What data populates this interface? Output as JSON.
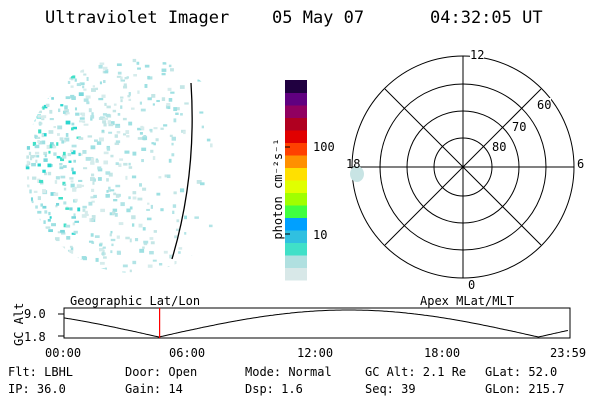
{
  "header": {
    "instrument": "Ultraviolet Imager",
    "date": "05 May 07",
    "time": "04:32:05 UT"
  },
  "colorbar": {
    "unit_label": "photon cm⁻²s⁻¹",
    "ticks": [
      "100",
      "10"
    ],
    "colors": [
      "#d8e8e8",
      "#b0e0e0",
      "#40e0c8",
      "#30c0e0",
      "#00a0ff",
      "#40ff40",
      "#a0ff00",
      "#e0ff00",
      "#ffe000",
      "#ff9000",
      "#ff4000",
      "#e00000",
      "#b00020",
      "#900060",
      "#600080",
      "#200040"
    ]
  },
  "polar_plot": {
    "mlt_labels": {
      "top": "12",
      "left": "18",
      "right": "6",
      "bottom": "0"
    },
    "lat_labels": [
      "60",
      "70",
      "80"
    ]
  },
  "panel_labels": {
    "left": "Geographic Lat/Lon",
    "right": "Apex MLat/MLT"
  },
  "altitude_plot": {
    "ylabel": "GC Alt",
    "y_ticks": [
      "9.0",
      "1.8"
    ],
    "x_ticks": [
      "00:00",
      "06:00",
      "12:00",
      "18:00",
      "23:59"
    ],
    "current_time_hours": 4.535
  },
  "info": {
    "row1": {
      "flt": "Flt: LBHL",
      "door": "Door: Open",
      "mode": "Mode: Normal",
      "gcalt": "GC Alt: 2.1 Re",
      "glat": "GLat:  52.0"
    },
    "row2": {
      "ip": "IP: 36.0",
      "gain": "Gain: 14",
      "dsp": "Dsp:    1.6",
      "seq": "Seq: 39",
      "glon": "GLon: 215.7"
    }
  }
}
